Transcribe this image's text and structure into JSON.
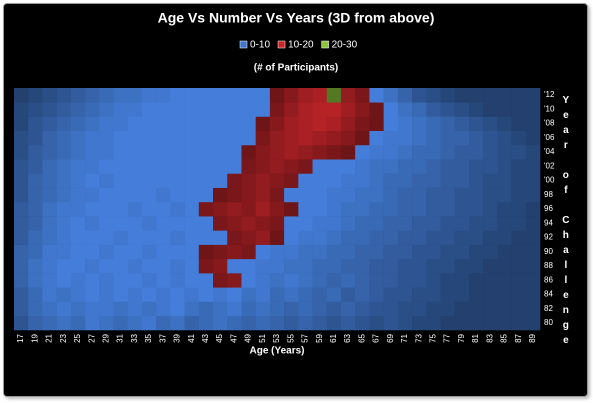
{
  "chart_data": {
    "type": "surface",
    "title": "Age Vs Number Vs Years (3D from above)",
    "subtitle": "(# of Participants)",
    "x_label": "Age (Years)",
    "y_label": "Year of Challenge",
    "x": [
      17,
      19,
      21,
      23,
      25,
      27,
      29,
      31,
      33,
      35,
      37,
      39,
      41,
      43,
      45,
      47,
      49,
      51,
      53,
      55,
      57,
      59,
      61,
      63,
      65,
      67,
      69,
      71,
      73,
      75,
      77,
      79,
      81,
      83,
      85,
      87,
      89
    ],
    "y": [
      "80",
      "82",
      "84",
      "86",
      "88",
      "90",
      "92",
      "94",
      "96",
      "98",
      "'00",
      "'02",
      "'04",
      "'06",
      "'08",
      "'10",
      "'12"
    ],
    "bands": [
      {
        "name": "0-10",
        "range": [
          0,
          10
        ],
        "color": "#3f74c8"
      },
      {
        "name": "10-20",
        "range": [
          10,
          20
        ],
        "color": "#c8262a"
      },
      {
        "name": "20-30",
        "range": [
          20,
          30
        ],
        "color": "#8cc43c"
      }
    ],
    "z": [
      [
        3,
        5,
        6,
        7,
        6,
        8,
        7,
        6,
        7,
        8,
        6,
        7,
        5,
        6,
        7,
        6,
        5,
        6,
        5,
        4,
        5,
        4,
        3,
        4,
        3,
        2,
        3,
        2,
        1,
        1,
        0,
        0,
        0,
        0,
        0,
        0,
        0
      ],
      [
        4,
        6,
        7,
        8,
        7,
        8,
        8,
        7,
        8,
        7,
        8,
        9,
        7,
        6,
        7,
        8,
        6,
        7,
        6,
        5,
        6,
        5,
        4,
        5,
        4,
        3,
        3,
        2,
        2,
        1,
        1,
        0,
        0,
        0,
        0,
        0,
        0
      ],
      [
        4,
        6,
        8,
        7,
        8,
        9,
        8,
        9,
        8,
        9,
        8,
        9,
        8,
        9,
        8,
        9,
        7,
        8,
        6,
        7,
        6,
        5,
        6,
        4,
        5,
        4,
        3,
        3,
        2,
        2,
        1,
        1,
        0,
        0,
        0,
        0,
        0
      ],
      [
        5,
        7,
        8,
        9,
        8,
        9,
        8,
        9,
        9,
        8,
        9,
        8,
        9,
        9,
        11,
        12,
        9,
        8,
        7,
        8,
        7,
        6,
        5,
        6,
        5,
        4,
        4,
        3,
        3,
        2,
        1,
        1,
        0,
        0,
        0,
        0,
        0
      ],
      [
        5,
        7,
        8,
        9,
        9,
        8,
        9,
        9,
        8,
        9,
        9,
        8,
        9,
        11,
        12,
        9,
        9,
        8,
        8,
        7,
        7,
        6,
        6,
        5,
        5,
        4,
        4,
        3,
        3,
        2,
        2,
        1,
        1,
        0,
        0,
        0,
        0
      ],
      [
        5,
        6,
        8,
        8,
        9,
        9,
        8,
        9,
        9,
        8,
        9,
        9,
        9,
        10,
        11,
        12,
        11,
        9,
        8,
        8,
        7,
        7,
        6,
        6,
        5,
        5,
        4,
        4,
        3,
        3,
        2,
        2,
        1,
        1,
        0,
        0,
        0
      ],
      [
        4,
        6,
        7,
        8,
        9,
        9,
        9,
        8,
        9,
        9,
        9,
        8,
        9,
        9,
        9,
        11,
        12,
        13,
        10,
        9,
        8,
        8,
        7,
        6,
        6,
        5,
        5,
        4,
        4,
        3,
        3,
        2,
        2,
        1,
        1,
        0,
        0
      ],
      [
        4,
        5,
        7,
        8,
        9,
        8,
        9,
        9,
        9,
        8,
        9,
        9,
        9,
        9,
        11,
        12,
        13,
        12,
        11,
        9,
        9,
        8,
        8,
        7,
        6,
        6,
        5,
        5,
        4,
        4,
        3,
        3,
        2,
        2,
        1,
        1,
        0
      ],
      [
        4,
        5,
        7,
        8,
        8,
        9,
        9,
        9,
        8,
        9,
        9,
        8,
        9,
        11,
        12,
        13,
        12,
        14,
        12,
        10,
        9,
        9,
        8,
        7,
        7,
        6,
        6,
        5,
        5,
        4,
        4,
        3,
        3,
        2,
        1,
        1,
        0
      ],
      [
        3,
        5,
        6,
        7,
        8,
        8,
        9,
        9,
        9,
        9,
        8,
        9,
        9,
        9,
        10,
        11,
        12,
        13,
        11,
        9,
        9,
        9,
        8,
        8,
        7,
        7,
        6,
        5,
        5,
        4,
        4,
        3,
        3,
        2,
        2,
        1,
        1
      ],
      [
        3,
        5,
        6,
        7,
        8,
        9,
        8,
        9,
        9,
        9,
        9,
        9,
        9,
        9,
        9,
        11,
        12,
        13,
        12,
        11,
        9,
        9,
        9,
        8,
        8,
        7,
        6,
        6,
        5,
        5,
        4,
        4,
        3,
        2,
        2,
        1,
        1
      ],
      [
        3,
        4,
        6,
        7,
        8,
        8,
        9,
        9,
        9,
        9,
        9,
        9,
        9,
        9,
        9,
        9,
        11,
        12,
        13,
        12,
        11,
        9,
        9,
        9,
        8,
        7,
        7,
        6,
        6,
        5,
        4,
        4,
        3,
        3,
        2,
        1,
        1
      ],
      [
        2,
        4,
        5,
        6,
        7,
        8,
        8,
        9,
        9,
        9,
        9,
        9,
        9,
        9,
        9,
        9,
        10,
        12,
        13,
        14,
        13,
        12,
        11,
        10,
        9,
        8,
        8,
        7,
        6,
        6,
        5,
        4,
        4,
        3,
        2,
        2,
        1
      ],
      [
        2,
        3,
        5,
        6,
        7,
        8,
        8,
        9,
        9,
        9,
        9,
        9,
        9,
        9,
        9,
        9,
        9,
        11,
        13,
        14,
        15,
        14,
        13,
        12,
        10,
        9,
        8,
        8,
        7,
        6,
        5,
        5,
        4,
        3,
        2,
        1,
        0
      ],
      [
        1,
        3,
        4,
        5,
        6,
        7,
        8,
        8,
        9,
        9,
        9,
        9,
        9,
        9,
        9,
        9,
        9,
        10,
        12,
        14,
        15,
        16,
        15,
        13,
        11,
        10,
        9,
        8,
        7,
        6,
        5,
        4,
        3,
        2,
        1,
        0,
        0
      ],
      [
        1,
        2,
        3,
        4,
        5,
        6,
        7,
        8,
        8,
        9,
        9,
        9,
        9,
        9,
        9,
        9,
        9,
        9,
        11,
        13,
        15,
        16,
        16,
        14,
        12,
        10,
        9,
        7,
        6,
        4,
        3,
        2,
        1,
        0,
        0,
        0,
        0
      ],
      [
        0,
        1,
        2,
        3,
        4,
        5,
        6,
        7,
        7,
        8,
        8,
        9,
        9,
        9,
        9,
        9,
        9,
        9,
        10,
        12,
        14,
        15,
        21,
        13,
        11,
        9,
        7,
        5,
        3,
        2,
        1,
        0,
        0,
        0,
        0,
        0,
        0
      ]
    ]
  }
}
